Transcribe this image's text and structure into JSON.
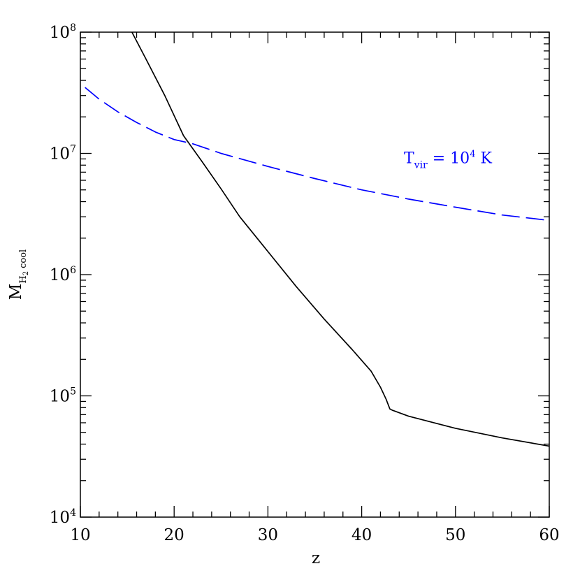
{
  "chart_data": {
    "type": "line",
    "xlabel": "z",
    "ylabel": {
      "main": "M",
      "sub1": "H",
      "sub2": "2",
      "sub3": "cool"
    },
    "xlim": [
      10,
      60
    ],
    "ylim": [
      10000,
      100000000
    ],
    "yscale": "log",
    "x_ticks": [
      {
        "value": 10,
        "label": "10"
      },
      {
        "value": 20,
        "label": "20"
      },
      {
        "value": 30,
        "label": "30"
      },
      {
        "value": 40,
        "label": "40"
      },
      {
        "value": 50,
        "label": "50"
      },
      {
        "value": 60,
        "label": "60"
      }
    ],
    "y_ticks": [
      {
        "value": 10000,
        "base": "10",
        "exp": "4"
      },
      {
        "value": 100000,
        "base": "10",
        "exp": "5"
      },
      {
        "value": 1000000,
        "base": "10",
        "exp": "6"
      },
      {
        "value": 10000000,
        "base": "10",
        "exp": "7"
      },
      {
        "value": 100000000,
        "base": "10",
        "exp": "8"
      }
    ],
    "series": [
      {
        "style": "solid",
        "color": "#000000",
        "points": [
          [
            15.5,
            100000000
          ],
          [
            17,
            60000000
          ],
          [
            19,
            30000000
          ],
          [
            21,
            14000000
          ],
          [
            23,
            8500000
          ],
          [
            25,
            5100000
          ],
          [
            27,
            3000000
          ],
          [
            30,
            1550000
          ],
          [
            33,
            800000
          ],
          [
            36,
            430000
          ],
          [
            39,
            240000
          ],
          [
            41,
            160000
          ],
          [
            42,
            118000
          ],
          [
            42.6,
            94000
          ],
          [
            43,
            78000
          ],
          [
            43.3,
            76000
          ],
          [
            45,
            68000
          ],
          [
            50,
            54000
          ],
          [
            55,
            45000
          ],
          [
            60,
            38500
          ]
        ]
      },
      {
        "style": "dashed",
        "color": "#0000ff",
        "points": [
          [
            10.5,
            35000000
          ],
          [
            12,
            28000000
          ],
          [
            14,
            22000000
          ],
          [
            16,
            18000000
          ],
          [
            18,
            15000000
          ],
          [
            20,
            13000000
          ],
          [
            22,
            12000000
          ],
          [
            25,
            10000000
          ],
          [
            30,
            7800000
          ],
          [
            35,
            6200000
          ],
          [
            40,
            5000000
          ],
          [
            45,
            4200000
          ],
          [
            50,
            3600000
          ],
          [
            55,
            3100000
          ],
          [
            60,
            2800000
          ]
        ]
      }
    ],
    "annotation": {
      "T": "T",
      "sub": "vir",
      "middle": " = 10",
      "exp": "4",
      "end": " K",
      "color": "#0000ff",
      "x": 44.5,
      "y": 8300000
    }
  }
}
